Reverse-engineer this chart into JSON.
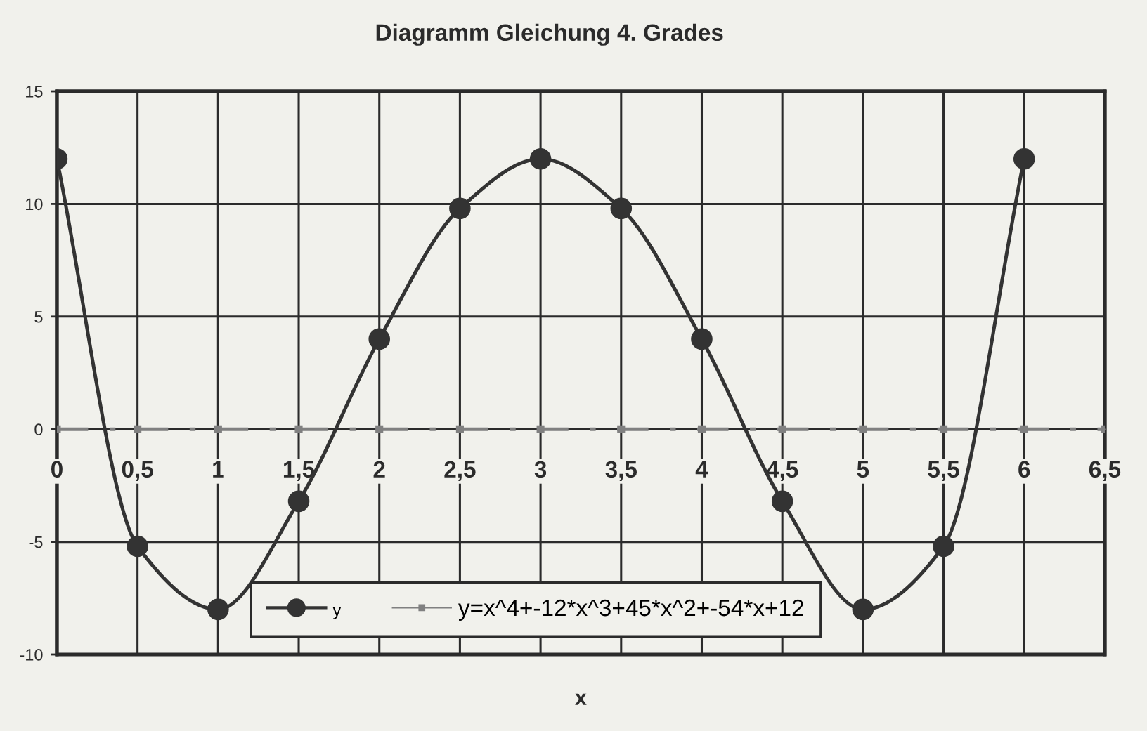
{
  "chart_data": {
    "type": "line",
    "title": "Diagramm Gleichung 4. Grades",
    "xlabel": "x",
    "xlim": [
      0,
      6.5
    ],
    "xticks": [
      0,
      {
        "value": 0.5,
        "label": "0,5"
      },
      1,
      {
        "value": 1.5,
        "label": "1,5"
      },
      2,
      {
        "value": 2.5,
        "label": "2,5"
      },
      3,
      {
        "value": 3.5,
        "label": "3,5"
      },
      4,
      {
        "value": 4.5,
        "label": "4,5"
      },
      5,
      {
        "value": 5.5,
        "label": "5,5"
      },
      6,
      {
        "value": 6.5,
        "label": "6,5"
      }
    ],
    "ylim": [
      -10,
      15
    ],
    "yticks": [
      -10,
      -5,
      0,
      5,
      10,
      15
    ],
    "grid": true,
    "legend": "bottom",
    "series": [
      {
        "name": "y",
        "color": "#333333",
        "marker": "circle",
        "line_style": "solid",
        "x": [
          0,
          0.5,
          1,
          1.5,
          2,
          2.5,
          3,
          3.5,
          4,
          4.5,
          5,
          5.5,
          6
        ],
        "values": [
          12,
          -5.2,
          -8,
          -3.2,
          4,
          9.8,
          12,
          9.8,
          4,
          -3.2,
          -8,
          -5.2,
          12
        ]
      },
      {
        "name": "y=x^4+-12*x^3+45*x^2+-54*x+12",
        "color": "#808080",
        "marker": "square",
        "line_style": "dashed",
        "x": [
          0,
          0.5,
          1,
          1.5,
          2,
          2.5,
          3,
          3.5,
          4,
          4.5,
          5,
          5.5,
          6,
          6.5
        ],
        "values": [
          0,
          0,
          0,
          0,
          0,
          0,
          0,
          0,
          0,
          0,
          0,
          0,
          0,
          0
        ]
      }
    ]
  }
}
